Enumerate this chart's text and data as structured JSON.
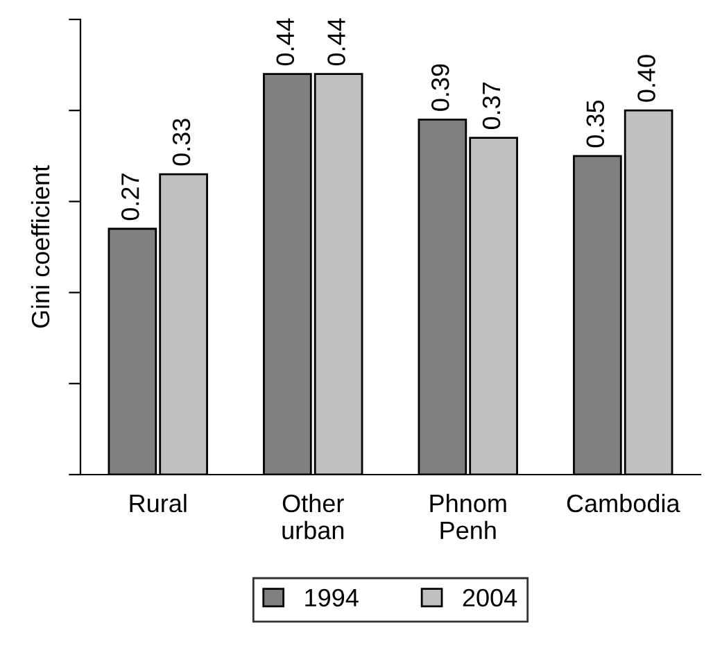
{
  "chart_data": {
    "type": "bar",
    "ylabel": "Gini coefficient",
    "categories": [
      "Rural",
      "Other\nurban",
      "Phnom\nPenh",
      "Cambodia"
    ],
    "series": [
      {
        "name": "1994",
        "color": "#808080",
        "values": [
          0.27,
          0.44,
          0.39,
          0.35
        ],
        "value_labels": [
          "0.27",
          "0.44",
          "0.39",
          "0.35"
        ]
      },
      {
        "name": "2004",
        "color": "#c0c0c0",
        "values": [
          0.33,
          0.44,
          0.37,
          0.4
        ],
        "value_labels": [
          "0.33",
          "0.44",
          "0.37",
          "0.40"
        ]
      }
    ],
    "ylim": [
      0,
      0.5
    ],
    "yticks": [
      {
        "value": 0,
        "label": null
      },
      {
        "value": 0.1,
        "label": null
      },
      {
        "value": 0.2,
        "label": null
      },
      {
        "value": 0.3,
        "label": null
      },
      {
        "value": 0.4,
        "label": null
      },
      {
        "value": 0.5,
        "label": null
      }
    ],
    "legend": "bottom",
    "grid": false
  }
}
